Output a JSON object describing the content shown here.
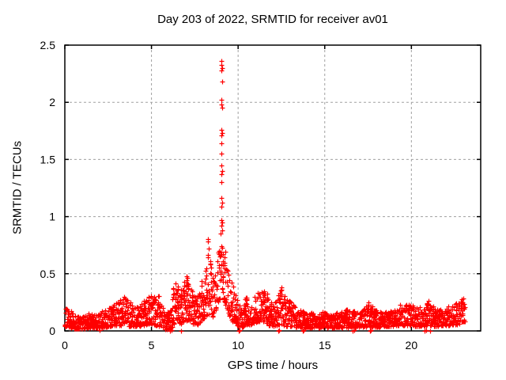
{
  "chart_data": {
    "type": "scatter",
    "title": "Day 203 of 2022, SRMTID for receiver av01",
    "xlabel": "GPS time / hours",
    "ylabel": "SRMTID / TECUs",
    "xlim": [
      0,
      24
    ],
    "ylim": [
      0,
      2.5
    ],
    "xticks": [
      0,
      5,
      10,
      15,
      20
    ],
    "xtick_labels": [
      "0",
      "5",
      "10",
      "15",
      "20"
    ],
    "yticks": [
      0,
      0.5,
      1,
      1.5,
      2,
      2.5
    ],
    "ytick_labels": [
      "0",
      "0.5",
      "1",
      "1.5",
      "2",
      "2.5"
    ],
    "grid": true,
    "legend": "none",
    "marker": "plus",
    "colors": {
      "marker": "#ff0000",
      "grid": "#a0a0a0",
      "axis": "#000000",
      "background": "#ffffff"
    },
    "peak": {
      "x": 9.05,
      "y": 2.36
    },
    "x_data_max": 23.1,
    "n_band_points": 2000,
    "seed": 2022203,
    "band_envelope": [
      [
        0.0,
        0.04,
        0.22
      ],
      [
        0.25,
        0.03,
        0.2
      ],
      [
        0.6,
        0.02,
        0.13
      ],
      [
        1.0,
        0.02,
        0.12
      ],
      [
        1.4,
        0.03,
        0.16
      ],
      [
        1.8,
        0.02,
        0.14
      ],
      [
        2.2,
        0.03,
        0.18
      ],
      [
        2.6,
        0.04,
        0.22
      ],
      [
        3.0,
        0.05,
        0.25
      ],
      [
        3.4,
        0.05,
        0.3
      ],
      [
        3.8,
        0.04,
        0.25
      ],
      [
        4.2,
        0.04,
        0.22
      ],
      [
        4.6,
        0.05,
        0.27
      ],
      [
        5.0,
        0.06,
        0.32
      ],
      [
        5.25,
        0.05,
        0.38
      ],
      [
        5.6,
        0.03,
        0.24
      ],
      [
        5.9,
        0.01,
        0.16
      ],
      [
        6.15,
        0.02,
        0.3
      ],
      [
        6.4,
        0.08,
        0.5
      ],
      [
        6.65,
        0.05,
        0.33
      ],
      [
        6.9,
        0.08,
        0.45
      ],
      [
        7.15,
        0.1,
        0.52
      ],
      [
        7.4,
        0.06,
        0.32
      ],
      [
        7.65,
        0.05,
        0.28
      ],
      [
        7.9,
        0.1,
        0.46
      ],
      [
        8.1,
        0.12,
        0.55
      ],
      [
        8.3,
        0.15,
        0.8
      ],
      [
        8.55,
        0.12,
        0.5
      ],
      [
        8.7,
        0.18,
        0.6
      ],
      [
        8.9,
        0.28,
        0.72
      ],
      [
        9.1,
        0.3,
        0.78
      ],
      [
        9.3,
        0.22,
        0.68
      ],
      [
        9.5,
        0.12,
        0.5
      ],
      [
        9.7,
        0.08,
        0.4
      ],
      [
        9.9,
        0.05,
        0.3
      ],
      [
        10.15,
        0.03,
        0.22
      ],
      [
        10.5,
        0.05,
        0.3
      ],
      [
        10.8,
        0.06,
        0.28
      ],
      [
        11.1,
        0.08,
        0.36
      ],
      [
        11.45,
        0.08,
        0.43
      ],
      [
        11.8,
        0.05,
        0.28
      ],
      [
        12.1,
        0.04,
        0.24
      ],
      [
        12.45,
        0.05,
        0.4
      ],
      [
        12.7,
        0.04,
        0.3
      ],
      [
        13.0,
        0.04,
        0.26
      ],
      [
        13.4,
        0.03,
        0.2
      ],
      [
        13.8,
        0.03,
        0.17
      ],
      [
        14.3,
        0.03,
        0.16
      ],
      [
        14.8,
        0.03,
        0.17
      ],
      [
        15.3,
        0.03,
        0.15
      ],
      [
        15.8,
        0.03,
        0.16
      ],
      [
        16.3,
        0.03,
        0.2
      ],
      [
        16.7,
        0.03,
        0.18
      ],
      [
        17.1,
        0.03,
        0.19
      ],
      [
        17.5,
        0.04,
        0.27
      ],
      [
        17.9,
        0.03,
        0.19
      ],
      [
        18.4,
        0.04,
        0.17
      ],
      [
        18.9,
        0.04,
        0.18
      ],
      [
        19.4,
        0.05,
        0.24
      ],
      [
        19.8,
        0.05,
        0.26
      ],
      [
        20.2,
        0.04,
        0.21
      ],
      [
        20.6,
        0.04,
        0.24
      ],
      [
        21.0,
        0.05,
        0.27
      ],
      [
        21.4,
        0.04,
        0.2
      ],
      [
        21.9,
        0.05,
        0.2
      ],
      [
        22.3,
        0.05,
        0.22
      ],
      [
        22.7,
        0.06,
        0.26
      ],
      [
        23.0,
        0.08,
        0.3
      ],
      [
        23.1,
        0.08,
        0.28
      ]
    ],
    "spike_points": [
      [
        9.05,
        2.36
      ],
      [
        9.03,
        2.33
      ],
      [
        9.07,
        2.3
      ],
      [
        9.05,
        2.28
      ],
      [
        9.06,
        2.18
      ],
      [
        9.04,
        2.02
      ],
      [
        9.05,
        1.98
      ],
      [
        9.06,
        1.95
      ],
      [
        9.03,
        1.76
      ],
      [
        9.06,
        1.73
      ],
      [
        9.05,
        1.71
      ],
      [
        9.02,
        1.64
      ],
      [
        9.05,
        1.55
      ],
      [
        9.05,
        1.45
      ],
      [
        9.07,
        1.4
      ],
      [
        9.04,
        1.37
      ],
      [
        9.02,
        1.3
      ],
      [
        9.05,
        1.16
      ],
      [
        9.06,
        1.12
      ],
      [
        9.04,
        1.09
      ],
      [
        9.02,
        0.97
      ],
      [
        9.07,
        0.95
      ],
      [
        9.05,
        0.92
      ],
      [
        9.09,
        0.88
      ],
      [
        9.0,
        0.85
      ],
      [
        8.25,
        0.8
      ],
      [
        8.28,
        0.78
      ]
    ],
    "zero_points": [
      [
        2.02,
        0.005
      ],
      [
        6.08,
        0.0
      ],
      [
        6.16,
        0.005
      ],
      [
        6.7,
        0.0
      ],
      [
        10.04,
        0.0
      ],
      [
        10.1,
        0.005
      ],
      [
        12.34,
        0.0
      ],
      [
        12.37,
        0.005
      ],
      [
        13.72,
        0.0
      ],
      [
        13.8,
        0.005
      ],
      [
        16.62,
        0.0
      ],
      [
        16.7,
        0.005
      ],
      [
        17.6,
        0.0
      ],
      [
        17.68,
        0.005
      ],
      [
        20.75,
        0.0
      ],
      [
        20.83,
        0.005
      ],
      [
        21.1,
        0.0
      ]
    ]
  }
}
